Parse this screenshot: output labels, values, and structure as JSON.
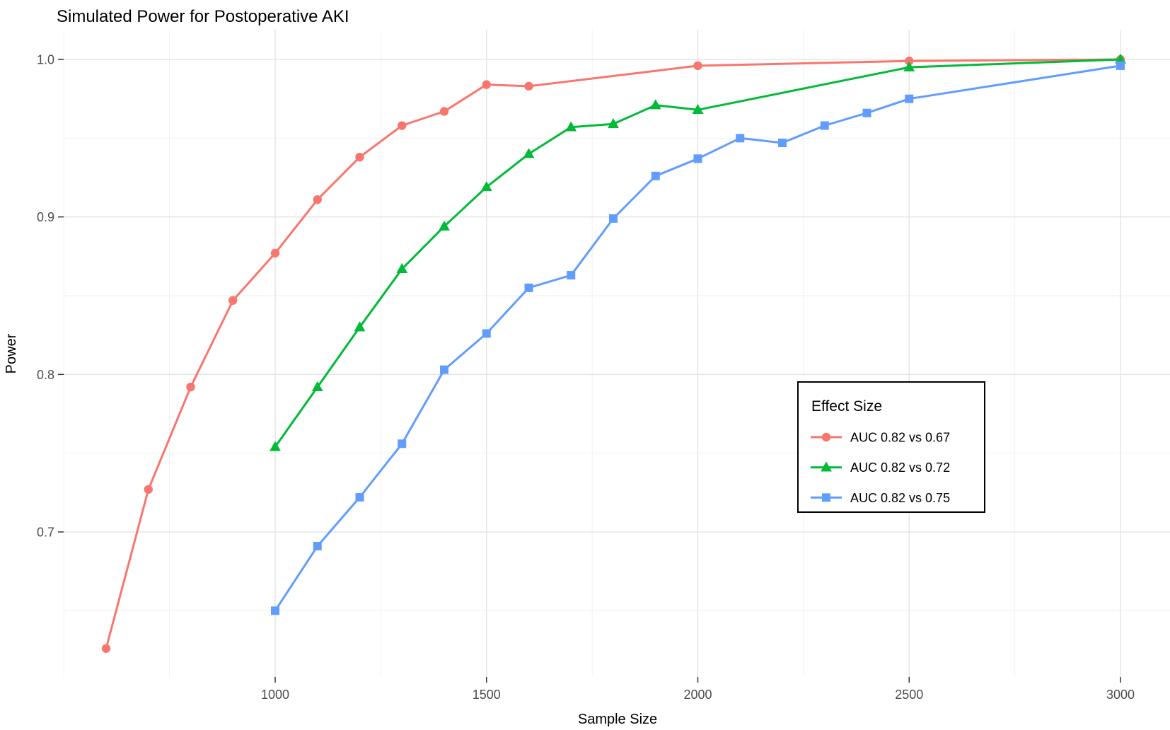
{
  "chart_data": {
    "type": "line",
    "title": "Simulated Power for Postoperative AKI",
    "xlabel": "Sample Size",
    "ylabel": "Power",
    "x_ticks": [
      1000,
      1500,
      2000,
      2500,
      3000
    ],
    "x_minor_ticks": [
      500,
      750,
      1250,
      1750,
      2250,
      2750
    ],
    "y_ticks": [
      0.7,
      0.8,
      0.9,
      1.0
    ],
    "y_minor_ticks": [
      0.65,
      0.75,
      0.85,
      0.95
    ],
    "xlim": [
      500,
      3120
    ],
    "ylim": [
      0.608,
      1.019
    ],
    "grid": true,
    "legend": {
      "title": "Effect Size",
      "position": "inside-right"
    },
    "series": [
      {
        "name": "AUC 0.82 vs 0.67",
        "color": "#F8766D",
        "marker": "circle",
        "x": [
          600,
          700,
          800,
          900,
          1000,
          1100,
          1200,
          1300,
          1400,
          1500,
          1600,
          2000,
          2500,
          3000
        ],
        "y": [
          0.626,
          0.727,
          0.792,
          0.847,
          0.877,
          0.911,
          0.938,
          0.958,
          0.967,
          0.984,
          0.983,
          0.996,
          0.999,
          1.0
        ]
      },
      {
        "name": "AUC 0.82 vs 0.72",
        "color": "#00BA38",
        "marker": "triangle",
        "x": [
          1000,
          1100,
          1200,
          1300,
          1400,
          1500,
          1600,
          1700,
          1800,
          1900,
          2000,
          2500,
          3000
        ],
        "y": [
          0.754,
          0.792,
          0.83,
          0.867,
          0.894,
          0.919,
          0.94,
          0.957,
          0.959,
          0.971,
          0.968,
          0.995,
          1.0
        ]
      },
      {
        "name": "AUC 0.82 vs 0.75",
        "color": "#619CFF",
        "marker": "square",
        "x": [
          1000,
          1100,
          1200,
          1300,
          1400,
          1500,
          1600,
          1700,
          1800,
          1900,
          2000,
          2100,
          2200,
          2300,
          2400,
          2500,
          3000
        ],
        "y": [
          0.65,
          0.691,
          0.722,
          0.756,
          0.803,
          0.826,
          0.855,
          0.863,
          0.899,
          0.926,
          0.937,
          0.95,
          0.947,
          0.958,
          0.966,
          0.975,
          0.996
        ]
      }
    ]
  }
}
